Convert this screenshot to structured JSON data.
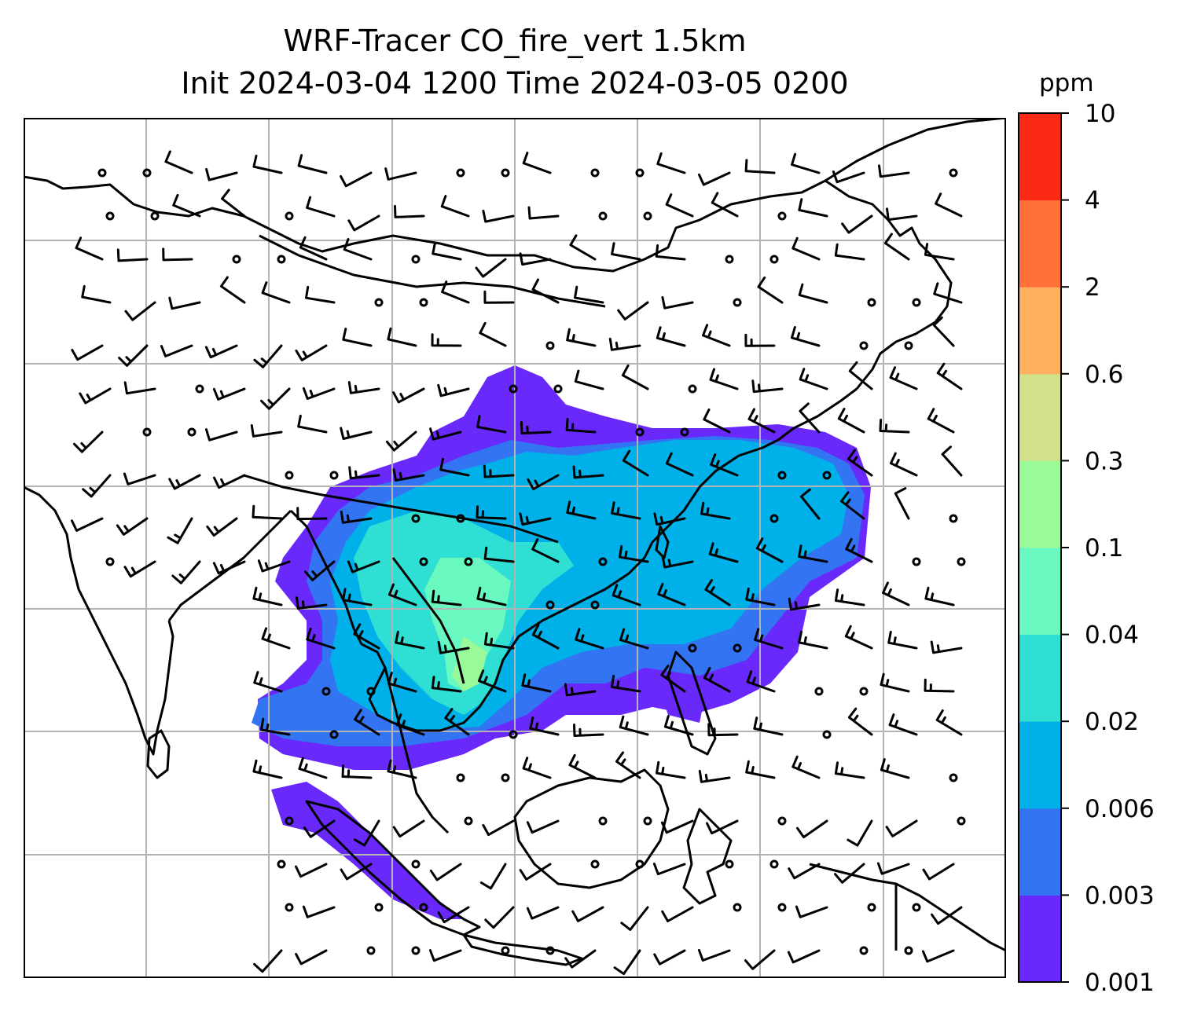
{
  "title": {
    "line1": "WRF-Tracer CO_fire_vert 1.5km",
    "line2": "Init 2024-03-04 1200 Time 2024-03-05 0200"
  },
  "colorbar": {
    "unit": "ppm",
    "levels": [
      "0.001",
      "0.003",
      "0.006",
      "0.02",
      "0.04",
      "0.1",
      "0.3",
      "0.6",
      "2",
      "4",
      "10"
    ],
    "colors": [
      "#6929fa",
      "#3374f2",
      "#00b0e8",
      "#2fdfd3",
      "#69f8c0",
      "#9afa9a",
      "#d1e08a",
      "#ffaf5e",
      "#ff7139",
      "#fc2a14"
    ]
  },
  "map": {
    "coastline_color": "#000000",
    "gridline_color": "#b4b4b4"
  }
}
